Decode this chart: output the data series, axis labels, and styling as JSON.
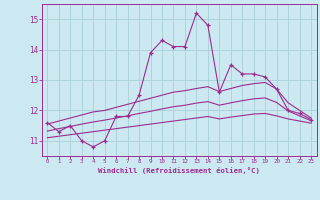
{
  "x_values": [
    0,
    1,
    2,
    3,
    4,
    5,
    6,
    7,
    8,
    9,
    10,
    11,
    12,
    13,
    14,
    15,
    16,
    17,
    18,
    19,
    20,
    21,
    22,
    23
  ],
  "main_line": [
    11.6,
    11.3,
    11.5,
    11.0,
    10.8,
    11.0,
    11.8,
    11.8,
    12.5,
    13.9,
    14.3,
    14.1,
    14.1,
    15.2,
    14.8,
    12.6,
    13.5,
    13.2,
    13.2,
    13.1,
    12.7,
    12.0,
    11.9,
    11.7
  ],
  "upper_line": [
    11.55,
    11.65,
    11.75,
    11.85,
    11.95,
    12.0,
    12.1,
    12.2,
    12.3,
    12.4,
    12.5,
    12.6,
    12.65,
    12.72,
    12.78,
    12.62,
    12.72,
    12.82,
    12.88,
    12.92,
    12.7,
    12.25,
    12.0,
    11.75
  ],
  "lower_line": [
    11.1,
    11.15,
    11.2,
    11.25,
    11.3,
    11.35,
    11.4,
    11.45,
    11.5,
    11.55,
    11.6,
    11.65,
    11.7,
    11.75,
    11.8,
    11.72,
    11.78,
    11.83,
    11.88,
    11.9,
    11.82,
    11.72,
    11.65,
    11.58
  ],
  "mid_line": [
    11.32,
    11.4,
    11.47,
    11.55,
    11.62,
    11.68,
    11.75,
    11.82,
    11.9,
    11.97,
    12.05,
    12.12,
    12.17,
    12.24,
    12.29,
    12.17,
    12.25,
    12.32,
    12.38,
    12.41,
    12.26,
    11.98,
    11.82,
    11.66
  ],
  "line_color": "#9b2d8e",
  "bg_color": "#cce8f0",
  "grid_color": "#aacfda",
  "xlabel": "Windchill (Refroidissement éolien,°C)",
  "ylim": [
    10.5,
    15.5
  ],
  "xlim": [
    -0.5,
    23.5
  ],
  "yticks": [
    11,
    12,
    13,
    14,
    15
  ],
  "xticks": [
    0,
    1,
    2,
    3,
    4,
    5,
    6,
    7,
    8,
    9,
    10,
    11,
    12,
    13,
    14,
    15,
    16,
    17,
    18,
    19,
    20,
    21,
    22,
    23
  ]
}
